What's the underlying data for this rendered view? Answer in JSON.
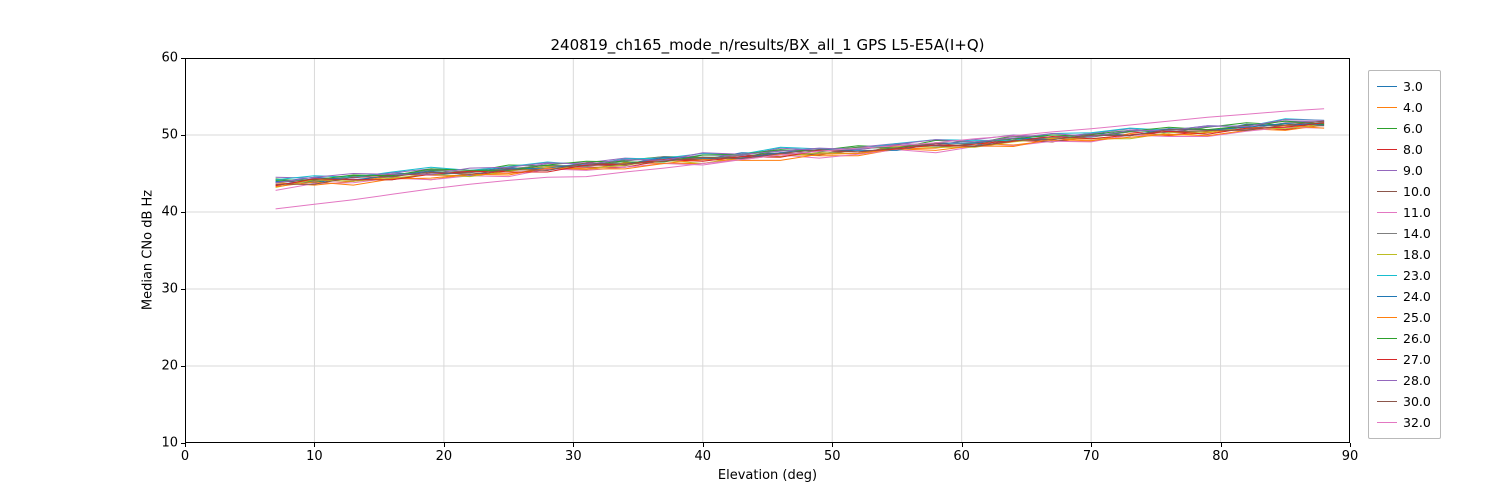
{
  "chart_data": {
    "type": "line",
    "title": "240819_ch165_mode_n/results/BX_all_1 GPS L5-E5A(I+Q)",
    "xlabel": "Elevation (deg)",
    "ylabel": "Median CNo dB Hz",
    "xlim": [
      0,
      90
    ],
    "ylim": [
      10,
      60
    ],
    "xticks": [
      0,
      10,
      20,
      30,
      40,
      50,
      60,
      70,
      80,
      90
    ],
    "yticks": [
      10,
      20,
      30,
      40,
      50,
      60
    ],
    "grid": true,
    "legend_position": "right",
    "grid_color": "#d9d9d9",
    "frame_color": "#000000",
    "x": [
      7,
      10,
      13,
      16,
      19,
      22,
      25,
      28,
      31,
      34,
      37,
      40,
      43,
      46,
      49,
      52,
      55,
      58,
      61,
      64,
      67,
      70,
      73,
      76,
      79,
      82,
      85,
      88
    ],
    "series": [
      {
        "name": "3.0",
        "color": "#1f77b4",
        "y": [
          44.0,
          43.8,
          44.5,
          45.1,
          44.8,
          45.2,
          45.8,
          45.4,
          46.2,
          46.3,
          46.9,
          46.8,
          47.7,
          47.6,
          47.5,
          48.2,
          48.7,
          48.6,
          48.6,
          49.5,
          49.6,
          50.2,
          50.0,
          50.5,
          50.4,
          51.4,
          51.2,
          51.6
        ]
      },
      {
        "name": "4.0",
        "color": "#ff7f0e",
        "y": [
          43.8,
          43.5,
          44.0,
          44.6,
          44.2,
          44.9,
          45.0,
          45.6,
          45.5,
          46.4,
          46.3,
          46.3,
          47.0,
          47.5,
          47.3,
          47.3,
          48.2,
          48.3,
          48.9,
          48.7,
          49.3,
          49.2,
          50.2,
          49.9,
          50.3,
          50.8,
          50.6,
          51.3
        ]
      },
      {
        "name": "6.0",
        "color": "#2ca02c",
        "y": [
          44.3,
          43.9,
          44.7,
          44.8,
          45.4,
          45.2,
          46.1,
          46.0,
          46.0,
          46.7,
          47.2,
          47.1,
          47.1,
          48.0,
          48.0,
          48.6,
          48.4,
          49.0,
          48.9,
          49.9,
          49.7,
          50.1,
          50.6,
          50.3,
          51.0,
          51.6,
          51.3,
          51.8
        ]
      },
      {
        "name": "8.0",
        "color": "#d62728",
        "y": [
          43.5,
          44.1,
          44.0,
          44.9,
          44.8,
          44.7,
          45.4,
          45.9,
          45.8,
          45.8,
          46.7,
          46.8,
          47.4,
          47.2,
          47.7,
          47.6,
          48.6,
          48.4,
          48.8,
          49.3,
          49.1,
          49.8,
          50.4,
          50.0,
          50.5,
          51.1,
          50.7,
          51.5
        ]
      },
      {
        "name": "9.0",
        "color": "#9467bd",
        "y": [
          44.5,
          44.4,
          44.4,
          45.1,
          45.6,
          45.4,
          45.4,
          46.3,
          46.4,
          47.0,
          46.8,
          47.4,
          47.3,
          48.3,
          48.0,
          48.4,
          48.9,
          48.7,
          49.4,
          50.0,
          49.7,
          50.2,
          50.8,
          50.3,
          51.1,
          51.2,
          51.8,
          51.7
        ]
      },
      {
        "name": "10.0",
        "color": "#8c564b",
        "y": [
          43.8,
          44.3,
          44.2,
          44.2,
          45.1,
          45.1,
          45.7,
          45.5,
          46.1,
          46.0,
          47.0,
          46.8,
          47.2,
          47.7,
          47.4,
          48.1,
          48.7,
          48.4,
          48.9,
          49.5,
          49.1,
          49.9,
          50.0,
          50.5,
          50.4,
          51.3,
          51.2,
          51.2
        ]
      },
      {
        "name": "11.0",
        "color": "#e377c2",
        "y": [
          42.8,
          43.7,
          43.8,
          44.4,
          44.2,
          44.7,
          44.6,
          45.6,
          45.4,
          45.8,
          46.3,
          46.1,
          46.8,
          47.4,
          47.0,
          47.5,
          48.1,
          47.7,
          48.5,
          48.6,
          49.2,
          49.1,
          50.0,
          49.8,
          49.8,
          50.5,
          51.0,
          50.9
        ]
      },
      {
        "name": "14.0",
        "color": "#7f7f7f",
        "y": [
          44.2,
          44.0,
          44.6,
          44.5,
          45.5,
          45.2,
          45.6,
          46.1,
          45.9,
          46.6,
          47.2,
          46.9,
          47.4,
          48.0,
          47.5,
          48.3,
          48.4,
          49.0,
          48.9,
          49.8,
          49.7,
          49.7,
          50.4,
          50.8,
          50.7,
          50.7,
          51.6,
          51.7
        ]
      },
      {
        "name": "18.0",
        "color": "#bcbd22",
        "y": [
          43.2,
          44.2,
          44.0,
          44.4,
          44.9,
          44.6,
          45.3,
          45.9,
          45.6,
          46.1,
          46.7,
          46.3,
          47.1,
          47.2,
          47.7,
          47.6,
          48.5,
          48.4,
          48.4,
          49.1,
          49.6,
          49.5,
          49.5,
          50.3,
          50.4,
          51.0,
          50.8,
          51.4
        ]
      },
      {
        "name": "23.0",
        "color": "#17becf",
        "y": [
          44.2,
          44.7,
          44.5,
          45.2,
          45.8,
          45.4,
          45.9,
          46.5,
          46.1,
          46.9,
          47.0,
          47.6,
          47.5,
          48.4,
          48.2,
          48.2,
          48.9,
          49.4,
          49.3,
          49.3,
          50.2,
          50.3,
          50.9,
          50.6,
          51.2,
          51.1,
          52.1,
          51.9
        ]
      },
      {
        "name": "24.0",
        "color": "#1f77b4",
        "y": [
          43.9,
          44.5,
          44.2,
          44.7,
          45.3,
          44.8,
          45.6,
          45.7,
          46.3,
          46.2,
          47.1,
          47.0,
          47.0,
          47.7,
          48.1,
          48.0,
          48.0,
          48.9,
          49.0,
          49.6,
          49.4,
          50.0,
          49.9,
          50.8,
          50.6,
          51.0,
          51.5,
          51.3
        ]
      },
      {
        "name": "25.0",
        "color": "#ff7f0e",
        "y": [
          43.3,
          43.9,
          43.5,
          44.3,
          44.4,
          44.9,
          44.8,
          45.7,
          45.6,
          45.6,
          46.3,
          46.8,
          46.7,
          46.7,
          47.5,
          47.6,
          48.2,
          48.0,
          48.6,
          48.5,
          49.5,
          49.3,
          49.7,
          50.1,
          49.9,
          50.6,
          51.2,
          50.9
        ]
      },
      {
        "name": "26.0",
        "color": "#2ca02c",
        "y": [
          44.1,
          44.2,
          44.8,
          44.7,
          45.6,
          45.4,
          45.4,
          46.1,
          46.6,
          46.5,
          46.5,
          47.4,
          47.5,
          48.1,
          47.8,
          48.4,
          48.3,
          49.3,
          49.1,
          49.5,
          50.0,
          49.8,
          50.5,
          51.0,
          50.7,
          51.2,
          51.8,
          51.4
        ]
      },
      {
        "name": "27.0",
        "color": "#d62728",
        "y": [
          43.4,
          44.3,
          44.2,
          44.2,
          44.9,
          45.3,
          45.2,
          45.2,
          46.1,
          46.2,
          46.8,
          46.6,
          47.2,
          47.1,
          48.0,
          47.8,
          48.2,
          48.7,
          48.5,
          49.2,
          49.8,
          49.5,
          50.0,
          50.5,
          50.1,
          50.9,
          51.0,
          51.6
        ]
      },
      {
        "name": "28.0",
        "color": "#9467bd",
        "y": [
          43.8,
          44.5,
          45.0,
          44.9,
          44.9,
          45.7,
          45.8,
          46.4,
          46.2,
          46.8,
          46.7,
          47.7,
          47.5,
          47.9,
          48.3,
          48.1,
          48.8,
          49.4,
          49.1,
          49.6,
          50.2,
          49.8,
          50.6,
          50.6,
          51.2,
          51.1,
          52.0,
          51.9
        ]
      },
      {
        "name": "30.0",
        "color": "#8c564b",
        "y": [
          43.6,
          43.6,
          44.5,
          44.6,
          45.2,
          44.9,
          45.5,
          45.4,
          46.4,
          46.2,
          46.6,
          47.1,
          46.9,
          47.6,
          48.1,
          47.8,
          48.3,
          48.9,
          48.5,
          49.3,
          49.4,
          50.0,
          49.9,
          50.7,
          50.6,
          50.6,
          51.3,
          51.8
        ]
      },
      {
        "name": "32.0",
        "color": "#e377c2",
        "y": [
          40.4,
          41.0,
          41.6,
          42.3,
          43.0,
          43.6,
          44.1,
          44.5,
          44.6,
          45.2,
          45.7,
          46.3,
          46.8,
          47.4,
          47.9,
          48.3,
          48.6,
          49.0,
          49.5,
          49.9,
          50.4,
          50.8,
          51.3,
          51.8,
          52.3,
          52.7,
          53.1,
          53.4
        ]
      }
    ]
  }
}
